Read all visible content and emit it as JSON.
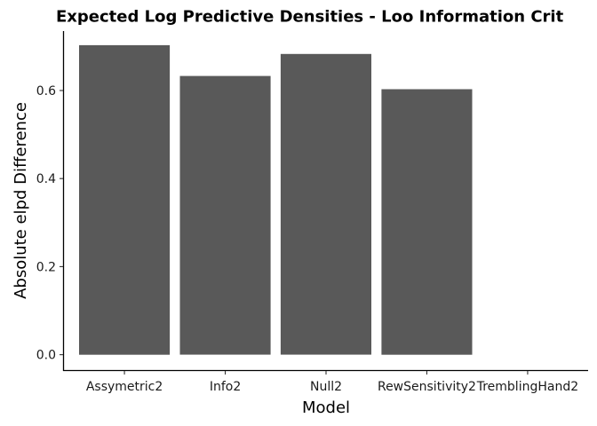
{
  "chart_data": {
    "type": "bar",
    "title": "Expected Log Predictive Densities - Loo Information Crit",
    "xlabel": "Model",
    "ylabel": "Absolute elpd Difference",
    "categories": [
      "Assymetric2",
      "Info2",
      "Null2",
      "RewSensitivity2",
      "TremblingHand2"
    ],
    "values": [
      0.703,
      0.633,
      0.683,
      0.603,
      0.0
    ],
    "ylim": [
      -0.035,
      0.735
    ],
    "yticks": [
      "0.0",
      "0.2",
      "0.4",
      "0.6"
    ],
    "grid": false,
    "legend": "none",
    "bar_color": "#595959"
  }
}
